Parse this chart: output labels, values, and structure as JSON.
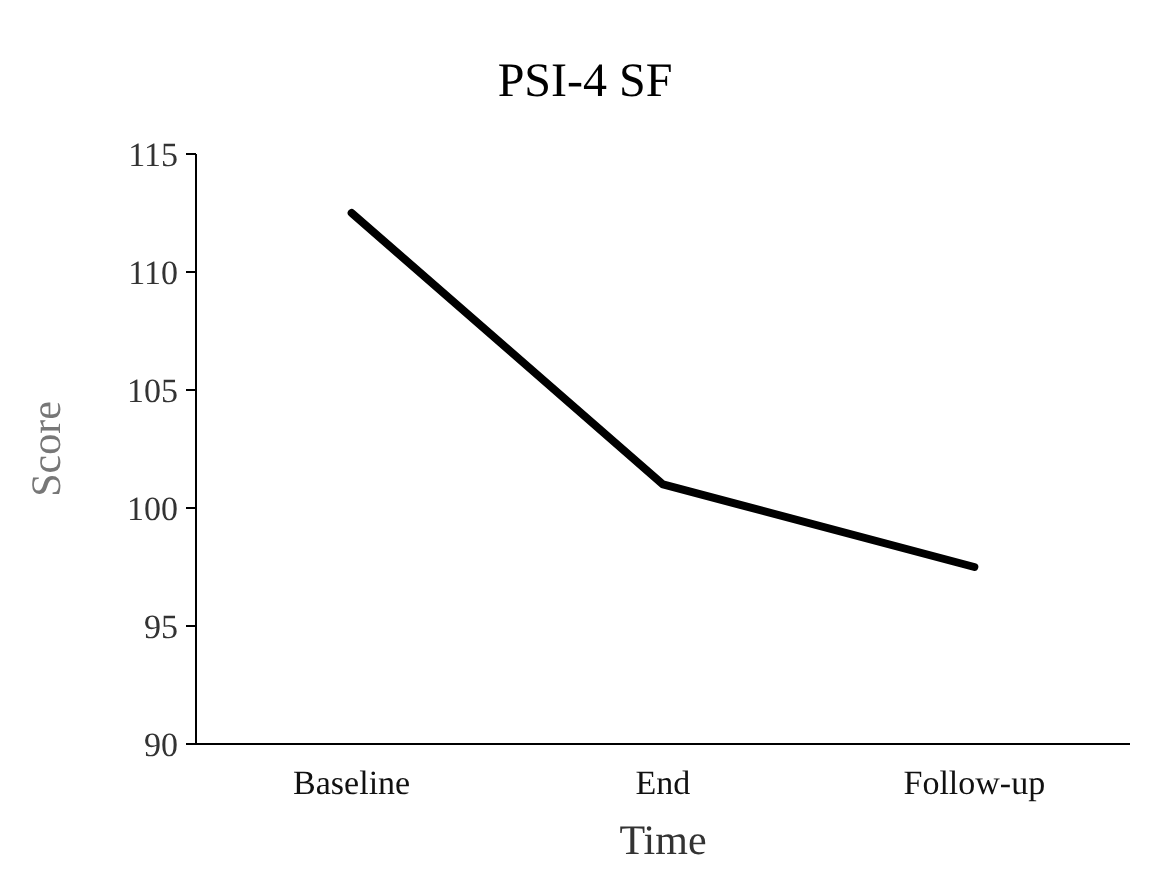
{
  "chart_data": {
    "type": "line",
    "title": "PSI-4 SF",
    "xlabel": "Time",
    "ylabel": "Score",
    "categories": [
      "Baseline",
      "End",
      "Follow-up"
    ],
    "series": [
      {
        "color": "#000000",
        "values": [
          112.5,
          101,
          97.5
        ]
      }
    ],
    "ylim": [
      90,
      115
    ],
    "yticks": [
      90,
      95,
      100,
      105,
      110,
      115
    ],
    "marker": "none",
    "line_style": "solid"
  }
}
